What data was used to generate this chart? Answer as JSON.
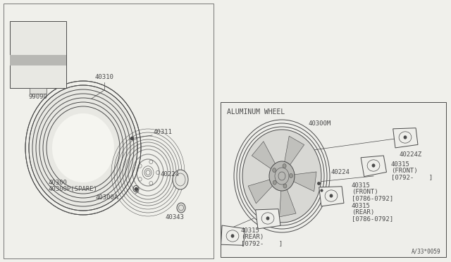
{
  "bg_color": "#f5f5f0",
  "line_color": "#4a4a4a",
  "fig_width": 6.4,
  "fig_height": 3.72,
  "dpi": 100,
  "label_99090": "99090",
  "label_diagram_num": "A/33*0059",
  "aluminum_wheel_label": "ALUMINUM WHEEL"
}
